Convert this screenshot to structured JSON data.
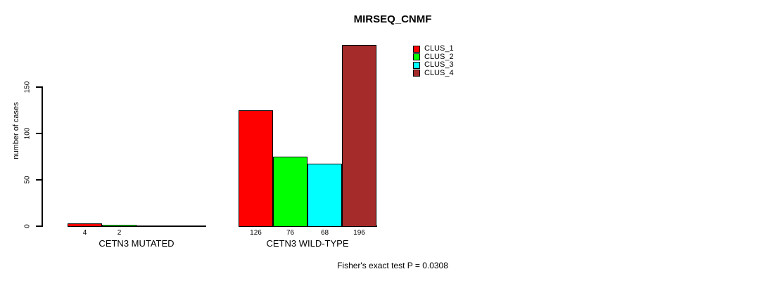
{
  "chart_data": {
    "type": "bar",
    "title": "MIRSEQ_CNMF",
    "ylabel": "number of cases",
    "xlabel": "",
    "ylim": [
      0,
      150
    ],
    "yticks": [
      0,
      50,
      100,
      150
    ],
    "grid": false,
    "legend_position": "top-right",
    "bar_outline_color": "#000000",
    "series": [
      {
        "name": "CLUS_1",
        "color": "#FF0000"
      },
      {
        "name": "CLUS_2",
        "color": "#00FF00"
      },
      {
        "name": "CLUS_3",
        "color": "#00FFFF"
      },
      {
        "name": "CLUS_4",
        "color": "#A52A2A"
      }
    ],
    "groups": [
      {
        "label": "CETN3 MUTATED",
        "values": [
          4,
          2,
          0,
          0
        ],
        "bar_labels": [
          "4",
          "2",
          "",
          ""
        ]
      },
      {
        "label": "CETN3 WILD-TYPE",
        "values": [
          126,
          76,
          68,
          196
        ],
        "bar_labels": [
          "126",
          "76",
          "68",
          "196"
        ]
      }
    ],
    "annotation": "Fisher's exact test P = 0.0308"
  }
}
